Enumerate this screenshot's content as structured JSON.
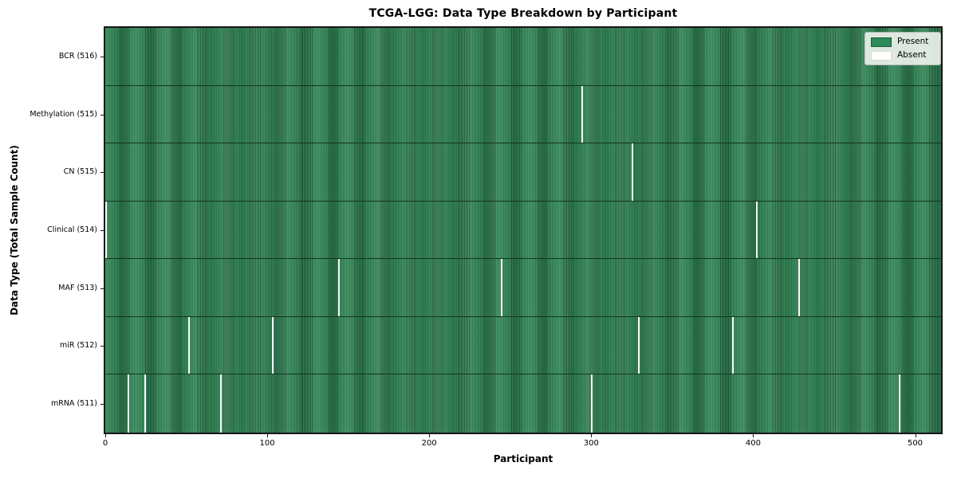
{
  "chart_data": {
    "type": "heatmap",
    "title": "TCGA-LGG: Data Type Breakdown by Participant",
    "xlabel": "Participant",
    "ylabel": "Data Type (Total Sample Count)",
    "x_ticks": [
      0,
      100,
      200,
      300,
      400,
      500
    ],
    "xlim": [
      0,
      516
    ],
    "n_participants": 516,
    "grid": false,
    "legend_position": "upper right",
    "legend": [
      {
        "label": "Present",
        "color": "#2e8b57"
      },
      {
        "label": "Absent",
        "color": "#ffffff"
      }
    ],
    "rows": [
      {
        "label": "BCR (516)",
        "data_type": "BCR",
        "present_count": 516,
        "absent_participants": []
      },
      {
        "label": "Methylation (515)",
        "data_type": "Methylation",
        "present_count": 515,
        "absent_participants": [
          294
        ]
      },
      {
        "label": "CN (515)",
        "data_type": "CN",
        "present_count": 515,
        "absent_participants": [
          325
        ]
      },
      {
        "label": "Clinical (514)",
        "data_type": "Clinical",
        "present_count": 514,
        "absent_participants": [
          0,
          402
        ]
      },
      {
        "label": "MAF (513)",
        "data_type": "MAF",
        "present_count": 513,
        "absent_participants": [
          144,
          244,
          428
        ]
      },
      {
        "label": "miR (512)",
        "data_type": "miR",
        "present_count": 512,
        "absent_participants": [
          51,
          103,
          329,
          387
        ]
      },
      {
        "label": "mRNA (511)",
        "data_type": "mRNA",
        "present_count": 511,
        "absent_participants": [
          14,
          24,
          71,
          300,
          490
        ]
      }
    ],
    "colors": {
      "present_fill": "#2e8b57",
      "absent_fill": "#fafafa",
      "frame": "#161616"
    }
  }
}
